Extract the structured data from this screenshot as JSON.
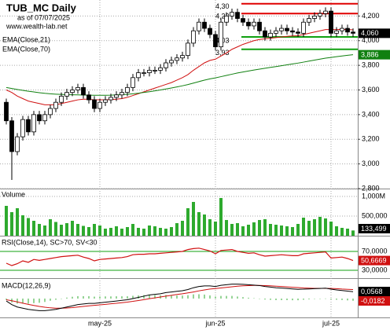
{
  "chart_data": {
    "type": "candlestick",
    "title": "TUB_MC Daily",
    "subtitle": "as of 07/07/2025",
    "source": "www.wealth-lab.net",
    "categories": [
      null,
      null,
      null,
      null,
      null,
      null,
      null,
      null,
      null,
      null,
      null,
      null,
      null,
      null,
      null,
      null,
      null,
      "may-25",
      null,
      null,
      null,
      null,
      null,
      null,
      null,
      null,
      null,
      null,
      null,
      null,
      null,
      null,
      null,
      null,
      null,
      null,
      null,
      null,
      "jun-25",
      null,
      null,
      null,
      null,
      null,
      null,
      null,
      null,
      null,
      null,
      null,
      null,
      null,
      null,
      null,
      null,
      null,
      null,
      null,
      null,
      "jul-25",
      null,
      null,
      null,
      null
    ],
    "open": [
      3.5,
      3.35,
      3.1,
      3.22,
      3.36,
      3.26,
      3.4,
      3.35,
      3.4,
      3.45,
      3.5,
      3.55,
      3.58,
      3.6,
      3.62,
      3.56,
      3.52,
      3.45,
      3.5,
      3.52,
      3.54,
      3.56,
      3.58,
      3.62,
      3.7,
      3.74,
      3.74,
      3.76,
      3.76,
      3.78,
      3.82,
      3.84,
      3.86,
      3.88,
      3.98,
      4.08,
      4.15,
      4.1,
      4.05,
      3.95,
      4.15,
      4.2,
      4.23,
      4.18,
      4.15,
      4.12,
      4.15,
      4.08,
      4.03,
      4.06,
      4.08,
      4.1,
      4.08,
      4.07,
      4.06,
      4.15,
      4.18,
      4.2,
      4.22,
      4.24,
      4.06,
      4.08,
      4.1,
      4.07
    ],
    "high": [
      3.53,
      3.38,
      3.25,
      3.39,
      3.39,
      3.43,
      3.43,
      3.43,
      3.48,
      3.53,
      3.58,
      3.61,
      3.63,
      3.65,
      3.65,
      3.59,
      3.55,
      3.53,
      3.55,
      3.57,
      3.59,
      3.61,
      3.65,
      3.73,
      3.77,
      3.77,
      3.79,
      3.79,
      3.81,
      3.85,
      3.87,
      3.89,
      3.91,
      4.01,
      4.11,
      4.18,
      4.18,
      4.13,
      4.08,
      4.18,
      4.23,
      4.26,
      4.26,
      4.21,
      4.18,
      4.18,
      4.18,
      4.11,
      4.09,
      4.11,
      4.13,
      4.13,
      4.11,
      4.1,
      4.18,
      4.21,
      4.23,
      4.25,
      4.27,
      4.27,
      4.11,
      4.13,
      4.13,
      4.1
    ],
    "low": [
      3.32,
      2.87,
      3.07,
      3.19,
      3.23,
      3.23,
      3.32,
      3.32,
      3.37,
      3.42,
      3.47,
      3.52,
      3.55,
      3.57,
      3.53,
      3.49,
      3.42,
      3.42,
      3.47,
      3.49,
      3.51,
      3.53,
      3.55,
      3.59,
      3.67,
      3.71,
      3.71,
      3.73,
      3.73,
      3.75,
      3.79,
      3.81,
      3.83,
      3.85,
      3.95,
      4.05,
      4.07,
      4.02,
      3.92,
      3.92,
      4.12,
      4.17,
      4.15,
      4.12,
      4.09,
      4.09,
      4.05,
      4.0,
      4.0,
      4.03,
      4.05,
      4.05,
      4.04,
      4.03,
      4.03,
      4.12,
      4.15,
      4.17,
      4.19,
      4.03,
      4.03,
      4.05,
      4.04,
      4.03
    ],
    "close": [
      3.35,
      3.1,
      3.22,
      3.36,
      3.26,
      3.4,
      3.35,
      3.4,
      3.45,
      3.5,
      3.55,
      3.58,
      3.6,
      3.62,
      3.56,
      3.52,
      3.45,
      3.5,
      3.52,
      3.54,
      3.56,
      3.58,
      3.62,
      3.7,
      3.74,
      3.74,
      3.76,
      3.76,
      3.78,
      3.82,
      3.84,
      3.86,
      3.88,
      3.98,
      4.08,
      4.15,
      4.1,
      4.05,
      3.95,
      4.15,
      4.2,
      4.23,
      4.18,
      4.15,
      4.12,
      4.15,
      4.08,
      4.03,
      4.06,
      4.08,
      4.1,
      4.08,
      4.07,
      4.06,
      4.15,
      4.18,
      4.2,
      4.22,
      4.24,
      4.06,
      4.08,
      4.1,
      4.07,
      4.06
    ],
    "last_label": "4,060",
    "ylim": [
      2.8,
      4.33
    ],
    "yticks": [
      {
        "value": 2.8,
        "label": "2,800"
      },
      {
        "value": 3.0,
        "label": "3,000"
      },
      {
        "value": 3.2,
        "label": "3,200"
      },
      {
        "value": 3.4,
        "label": "3,400"
      },
      {
        "value": 3.6,
        "label": "3,600"
      },
      {
        "value": 3.8,
        "label": "3,800"
      },
      {
        "value": 4.0,
        "label": "4,000"
      },
      {
        "value": 4.2,
        "label": "4,200"
      }
    ],
    "grid": true,
    "series": [
      {
        "name": "EMA(Close,21)",
        "color": "#d01010",
        "values": [
          3.6,
          3.58,
          3.55,
          3.53,
          3.51,
          3.5,
          3.49,
          3.48,
          3.48,
          3.48,
          3.49,
          3.5,
          3.51,
          3.52,
          3.525,
          3.525,
          3.52,
          3.52,
          3.52,
          3.522,
          3.525,
          3.53,
          3.54,
          3.555,
          3.57,
          3.585,
          3.6,
          3.615,
          3.63,
          3.645,
          3.66,
          3.68,
          3.7,
          3.725,
          3.76,
          3.79,
          3.82,
          3.84,
          3.85,
          3.875,
          3.9,
          3.93,
          3.95,
          3.97,
          3.985,
          4.0,
          4.01,
          4.015,
          4.02,
          4.025,
          4.03,
          4.035,
          4.038,
          4.04,
          4.05,
          4.06,
          4.07,
          4.08,
          4.09,
          4.09,
          4.09,
          4.092,
          4.09,
          4.088
        ]
      },
      {
        "name": "EMA(Close,70)",
        "color": "#108010",
        "last_label": "3,886",
        "values": [
          3.62,
          3.612,
          3.604,
          3.597,
          3.59,
          3.584,
          3.578,
          3.573,
          3.569,
          3.566,
          3.564,
          3.562,
          3.561,
          3.56,
          3.559,
          3.558,
          3.557,
          3.557,
          3.557,
          3.558,
          3.56,
          3.562,
          3.565,
          3.569,
          3.574,
          3.58,
          3.586,
          3.593,
          3.6,
          3.608,
          3.616,
          3.625,
          3.634,
          3.644,
          3.656,
          3.668,
          3.68,
          3.69,
          3.698,
          3.708,
          3.718,
          3.728,
          3.738,
          3.746,
          3.754,
          3.762,
          3.769,
          3.776,
          3.783,
          3.79,
          3.797,
          3.804,
          3.811,
          3.818,
          3.826,
          3.834,
          3.842,
          3.85,
          3.858,
          3.864,
          3.87,
          3.876,
          3.881,
          3.886
        ]
      }
    ],
    "levels": [
      {
        "value": 4.3,
        "label": "4,30",
        "color": "#e00000"
      },
      {
        "value": 4.22,
        "label": "4,22",
        "color": "#e00000"
      },
      {
        "value": 4.03,
        "label": "4,03",
        "color": "#10a010"
      },
      {
        "value": 3.93,
        "label": "3,93",
        "color": "#10a010"
      }
    ],
    "volume": {
      "name": "Volume",
      "color": "#2eaa2e",
      "last_label": "133,499",
      "ylim": [
        0,
        1200000
      ],
      "yticks": [
        {
          "value": 500000,
          "label": "500,000"
        },
        {
          "value": 1000000,
          "label": "1,000M"
        }
      ],
      "values": [
        760000,
        600000,
        700000,
        520000,
        450000,
        380000,
        300000,
        260000,
        420000,
        350000,
        280000,
        320000,
        380000,
        300000,
        250000,
        220000,
        300000,
        260000,
        180000,
        200000,
        240000,
        180000,
        220000,
        300000,
        200000,
        180000,
        260000,
        240000,
        200000,
        180000,
        220000,
        320000,
        380000,
        700000,
        860000,
        600000,
        540000,
        420000,
        360000,
        960000,
        400000,
        300000,
        320000,
        240000,
        280000,
        340000,
        400000,
        420000,
        300000,
        280000,
        260000,
        240000,
        220000,
        300000,
        460000,
        380000,
        420000,
        480000,
        440000,
        360000,
        240000,
        200000,
        180000,
        133499
      ]
    },
    "rsi": {
      "name": "RSI(Close,14), SC>70, SV<30",
      "color": "#d01010",
      "band_color": "#10a010",
      "last_label": "50,6669",
      "ylim": [
        20,
        100
      ],
      "yticks": [
        {
          "value": 30,
          "label": "30,0000"
        },
        {
          "value": 70,
          "label": "70,0000"
        }
      ],
      "values": [
        45,
        40,
        44,
        50,
        47,
        53,
        51,
        53,
        55,
        57,
        59,
        60,
        61,
        62,
        58,
        55,
        50,
        53,
        54,
        55,
        56,
        57,
        59,
        63,
        64,
        64,
        65,
        65,
        66,
        67,
        68,
        69,
        70,
        74,
        76,
        77,
        74,
        71,
        65,
        72,
        73,
        74,
        70,
        68,
        66,
        67,
        63,
        60,
        61,
        62,
        63,
        62,
        61,
        61,
        65,
        66,
        67,
        68,
        69,
        56,
        57,
        58,
        55,
        50.6669
      ]
    },
    "macd": {
      "name": "MACD(12,26,9)",
      "macd_color": "#000000",
      "signal_color": "#d01010",
      "histogram_color": "#2eaa2e",
      "ylim": [
        -0.15,
        0.15
      ],
      "macd_label": "0,0568",
      "histogram_label": "-0,0182",
      "macd": [
        -0.02,
        -0.05,
        -0.07,
        -0.08,
        -0.09,
        -0.095,
        -0.1,
        -0.1,
        -0.095,
        -0.09,
        -0.08,
        -0.07,
        -0.06,
        -0.05,
        -0.045,
        -0.04,
        -0.04,
        -0.035,
        -0.03,
        -0.025,
        -0.02,
        -0.015,
        -0.01,
        0.0,
        0.01,
        0.02,
        0.03,
        0.035,
        0.04,
        0.05,
        0.055,
        0.06,
        0.065,
        0.075,
        0.09,
        0.1,
        0.105,
        0.105,
        0.1,
        0.11,
        0.115,
        0.12,
        0.12,
        0.118,
        0.115,
        0.112,
        0.108,
        0.1,
        0.095,
        0.09,
        0.087,
        0.084,
        0.08,
        0.077,
        0.078,
        0.08,
        0.082,
        0.084,
        0.086,
        0.078,
        0.072,
        0.067,
        0.062,
        0.0568
      ],
      "signal": [
        -0.01,
        -0.018,
        -0.028,
        -0.038,
        -0.048,
        -0.057,
        -0.065,
        -0.072,
        -0.077,
        -0.08,
        -0.08,
        -0.078,
        -0.075,
        -0.07,
        -0.065,
        -0.06,
        -0.056,
        -0.052,
        -0.048,
        -0.043,
        -0.039,
        -0.034,
        -0.029,
        -0.023,
        -0.016,
        -0.009,
        -0.001,
        0.006,
        0.013,
        0.02,
        0.027,
        0.034,
        0.04,
        0.047,
        0.055,
        0.064,
        0.072,
        0.079,
        0.083,
        0.088,
        0.093,
        0.098,
        0.103,
        0.106,
        0.108,
        0.109,
        0.109,
        0.108,
        0.106,
        0.103,
        0.1,
        0.097,
        0.094,
        0.091,
        0.088,
        0.086,
        0.085,
        0.085,
        0.085,
        0.084,
        0.082,
        0.079,
        0.077,
        0.075
      ],
      "histogram": [
        -0.01,
        -0.032,
        -0.042,
        -0.042,
        -0.042,
        -0.038,
        -0.035,
        -0.028,
        -0.018,
        -0.01,
        0,
        0.008,
        0.015,
        0.02,
        0.02,
        0.02,
        0.016,
        0.017,
        0.018,
        0.018,
        0.019,
        0.019,
        0.019,
        0.023,
        0.026,
        0.029,
        0.031,
        0.029,
        0.027,
        0.03,
        0.028,
        0.026,
        0.025,
        0.028,
        0.035,
        0.036,
        0.033,
        0.026,
        0.017,
        0.022,
        0.022,
        0.022,
        0.017,
        0.012,
        0.007,
        0.003,
        -0.001,
        -0.008,
        -0.011,
        -0.013,
        -0.013,
        -0.013,
        -0.014,
        -0.014,
        -0.01,
        -0.006,
        -0.003,
        -0.001,
        0.001,
        -0.006,
        -0.01,
        -0.012,
        -0.015,
        -0.0182
      ]
    }
  }
}
